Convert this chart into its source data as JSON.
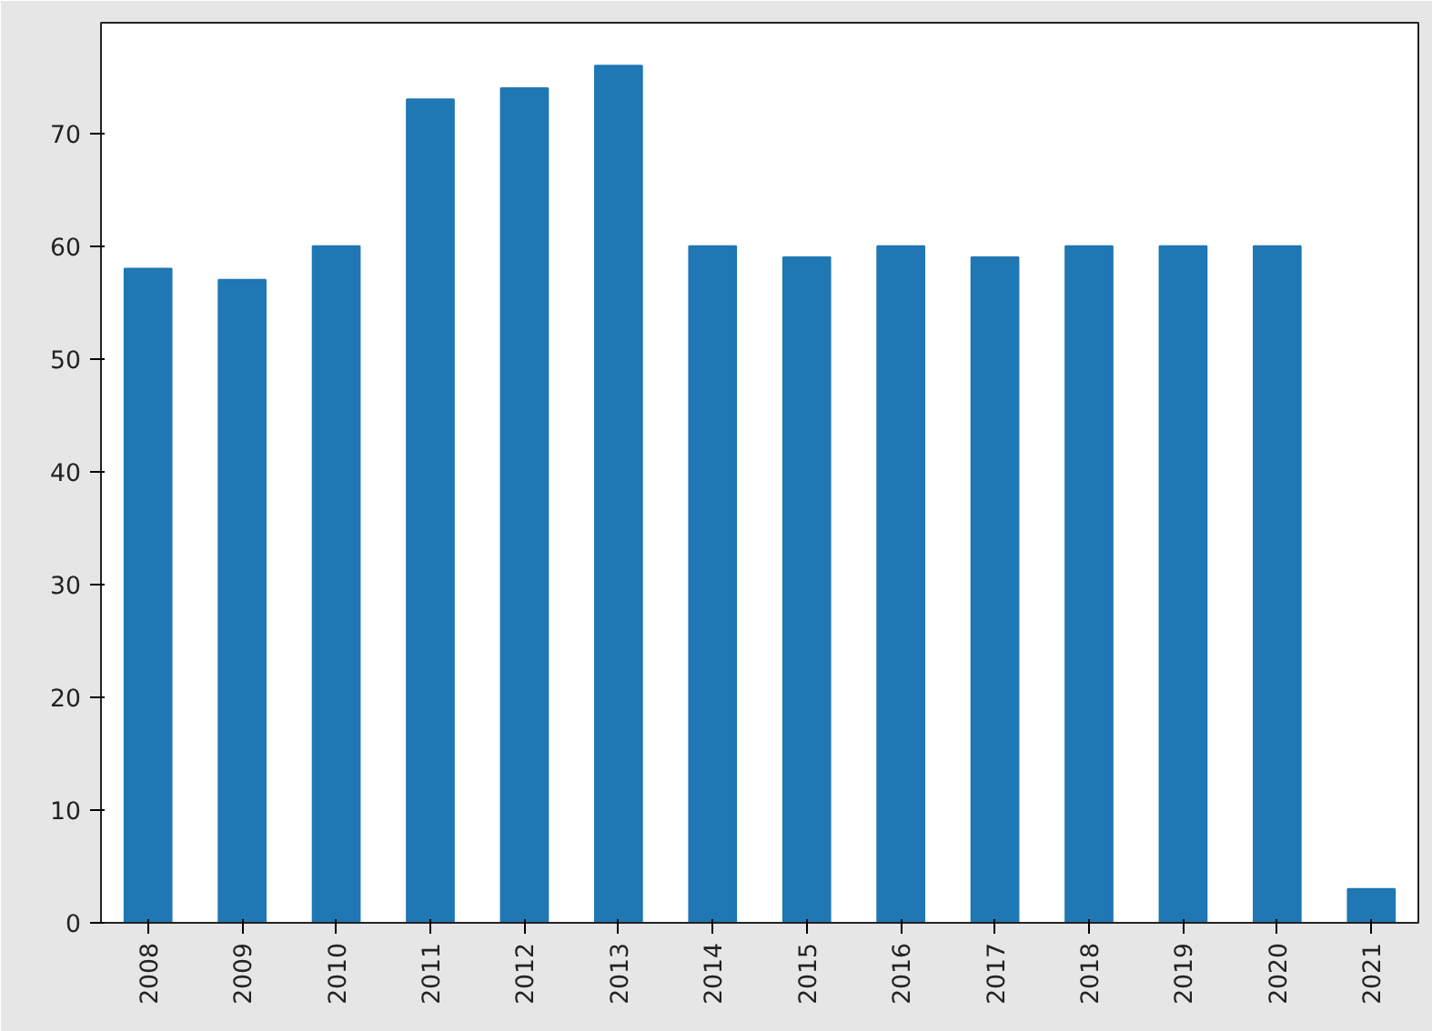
{
  "chart_data": {
    "type": "bar",
    "categories": [
      "2008",
      "2009",
      "2010",
      "2011",
      "2012",
      "2013",
      "2014",
      "2015",
      "2016",
      "2017",
      "2018",
      "2019",
      "2020",
      "2021"
    ],
    "values": [
      58,
      57,
      60,
      73,
      74,
      76,
      60,
      59,
      60,
      59,
      60,
      60,
      60,
      3
    ],
    "color": "#1f77b4",
    "ylim": [
      0,
      79.8
    ],
    "yticks": [
      0,
      10,
      20,
      30,
      40,
      50,
      60,
      70
    ],
    "grid": false
  }
}
